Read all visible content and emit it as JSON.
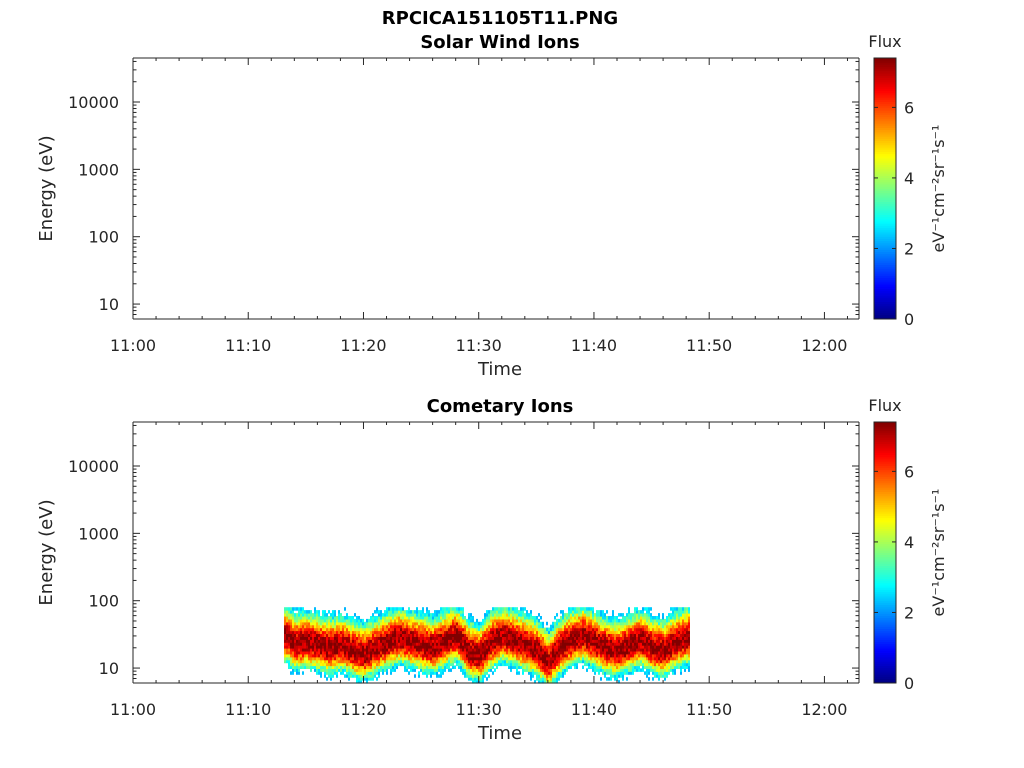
{
  "figure_title": "RPCICA151105T11.PNG",
  "chart_data": [
    {
      "type": "heatmap",
      "title": "Solar Wind Ions",
      "xlabel": "Time",
      "ylabel": "Energy (eV)",
      "x_ticks": [
        "11:00",
        "11:10",
        "11:20",
        "11:30",
        "11:40",
        "11:50",
        "12:00"
      ],
      "x_range_minutes": [
        0,
        63
      ],
      "y_scale": "log",
      "y_ticks": [
        "10",
        "100",
        "1000",
        "10000"
      ],
      "y_range": [
        6,
        45000
      ],
      "colorbar": {
        "title": "Flux",
        "label": "eV⁻¹cm⁻²sr⁻¹s⁻¹",
        "ticks": [
          "0",
          "2",
          "4",
          "6"
        ],
        "range": [
          0,
          7.4
        ],
        "colormap": "jet"
      },
      "data_present": false
    },
    {
      "type": "heatmap",
      "title": "Cometary Ions",
      "xlabel": "Time",
      "ylabel": "Energy (eV)",
      "x_ticks": [
        "11:00",
        "11:10",
        "11:20",
        "11:30",
        "11:40",
        "11:50",
        "12:00"
      ],
      "x_range_minutes": [
        0,
        63
      ],
      "y_scale": "log",
      "y_ticks": [
        "10",
        "100",
        "1000",
        "10000"
      ],
      "y_range": [
        6,
        45000
      ],
      "colorbar": {
        "title": "Flux",
        "label": "eV⁻¹cm⁻²sr⁻¹s⁻¹",
        "ticks": [
          "0",
          "2",
          "4",
          "6"
        ],
        "range": [
          0,
          7.4
        ],
        "colormap": "jet"
      },
      "data_present": true,
      "data_time_range_minutes": [
        13.1,
        48.3
      ],
      "data_energy_range_eV": [
        6,
        80
      ],
      "peak_flux_energy_profile": {
        "time_minutes": [
          13.2,
          14,
          15,
          16,
          17,
          18,
          19,
          20,
          21,
          22,
          23,
          24,
          25,
          26,
          27,
          28,
          29,
          30,
          31,
          32,
          33,
          34,
          35,
          36,
          37,
          38,
          39,
          40,
          41,
          42,
          43,
          44,
          45,
          46,
          47,
          48
        ],
        "energy_eV": [
          30,
          22,
          25,
          22,
          20,
          22,
          18,
          16,
          20,
          24,
          28,
          25,
          22,
          20,
          25,
          30,
          18,
          15,
          24,
          30,
          26,
          22,
          18,
          12,
          20,
          26,
          30,
          24,
          20,
          18,
          22,
          26,
          20,
          18,
          24,
          28
        ]
      }
    }
  ]
}
